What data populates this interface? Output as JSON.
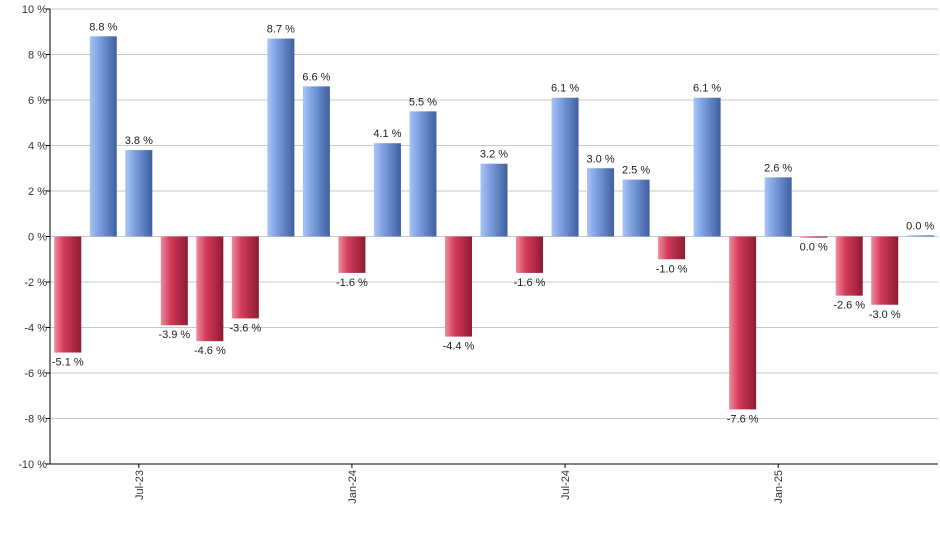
{
  "chart_data": {
    "type": "bar",
    "ylim": [
      -10,
      10
    ],
    "y_ticks": [
      -10,
      -8,
      -6,
      -4,
      -2,
      0,
      2,
      4,
      6,
      8,
      10
    ],
    "y_tick_suffix": " %",
    "grid": true,
    "legend": "none",
    "x_tick_labels": [
      {
        "index": 2,
        "label": "Jul-23"
      },
      {
        "index": 8,
        "label": "Jan-24"
      },
      {
        "index": 14,
        "label": "Jul-24"
      },
      {
        "index": 20,
        "label": "Jan-25"
      }
    ],
    "values": [
      -5.1,
      8.8,
      3.8,
      -3.9,
      -4.6,
      -3.6,
      8.7,
      6.6,
      -1.6,
      4.1,
      5.5,
      -4.4,
      3.2,
      -1.6,
      6.1,
      3.0,
      2.5,
      -1.0,
      6.1,
      -7.6,
      2.6,
      0.0,
      -2.6,
      -3.0,
      0.0
    ],
    "raw_values": [
      -5.1,
      8.8,
      3.8,
      -3.9,
      -4.6,
      -3.6,
      8.7,
      6.6,
      -1.6,
      4.1,
      5.5,
      -4.4,
      3.2,
      -1.6,
      6.1,
      3.0,
      2.5,
      -1.0,
      6.1,
      -7.6,
      2.6,
      -0.05,
      -2.6,
      -3.0,
      0.05
    ],
    "data_labels": [
      "-5.1 %",
      "8.8 %",
      "3.8 %",
      "-3.9 %",
      "-4.6 %",
      "-3.6 %",
      "8.7 %",
      "6.6 %",
      "-1.6 %",
      "4.1 %",
      "5.5 %",
      "-4.4 %",
      "3.2 %",
      "-1.6 %",
      "6.1 %",
      "3.0 %",
      "2.5 %",
      "-1.0 %",
      "6.1 %",
      "-7.6 %",
      "2.6 %",
      "0.0 %",
      "-2.6 %",
      "-3.0 %",
      "0.0 %"
    ],
    "colors": {
      "positive_light": "#a9c4f5",
      "positive_mid": "#7d9fe0",
      "positive_dark": "#3f5f9e",
      "negative_light": "#f08a9e",
      "negative_mid": "#d43c5a",
      "negative_dark": "#8e1a32",
      "grid": "#c8c8c8",
      "axis": "#000000"
    }
  }
}
